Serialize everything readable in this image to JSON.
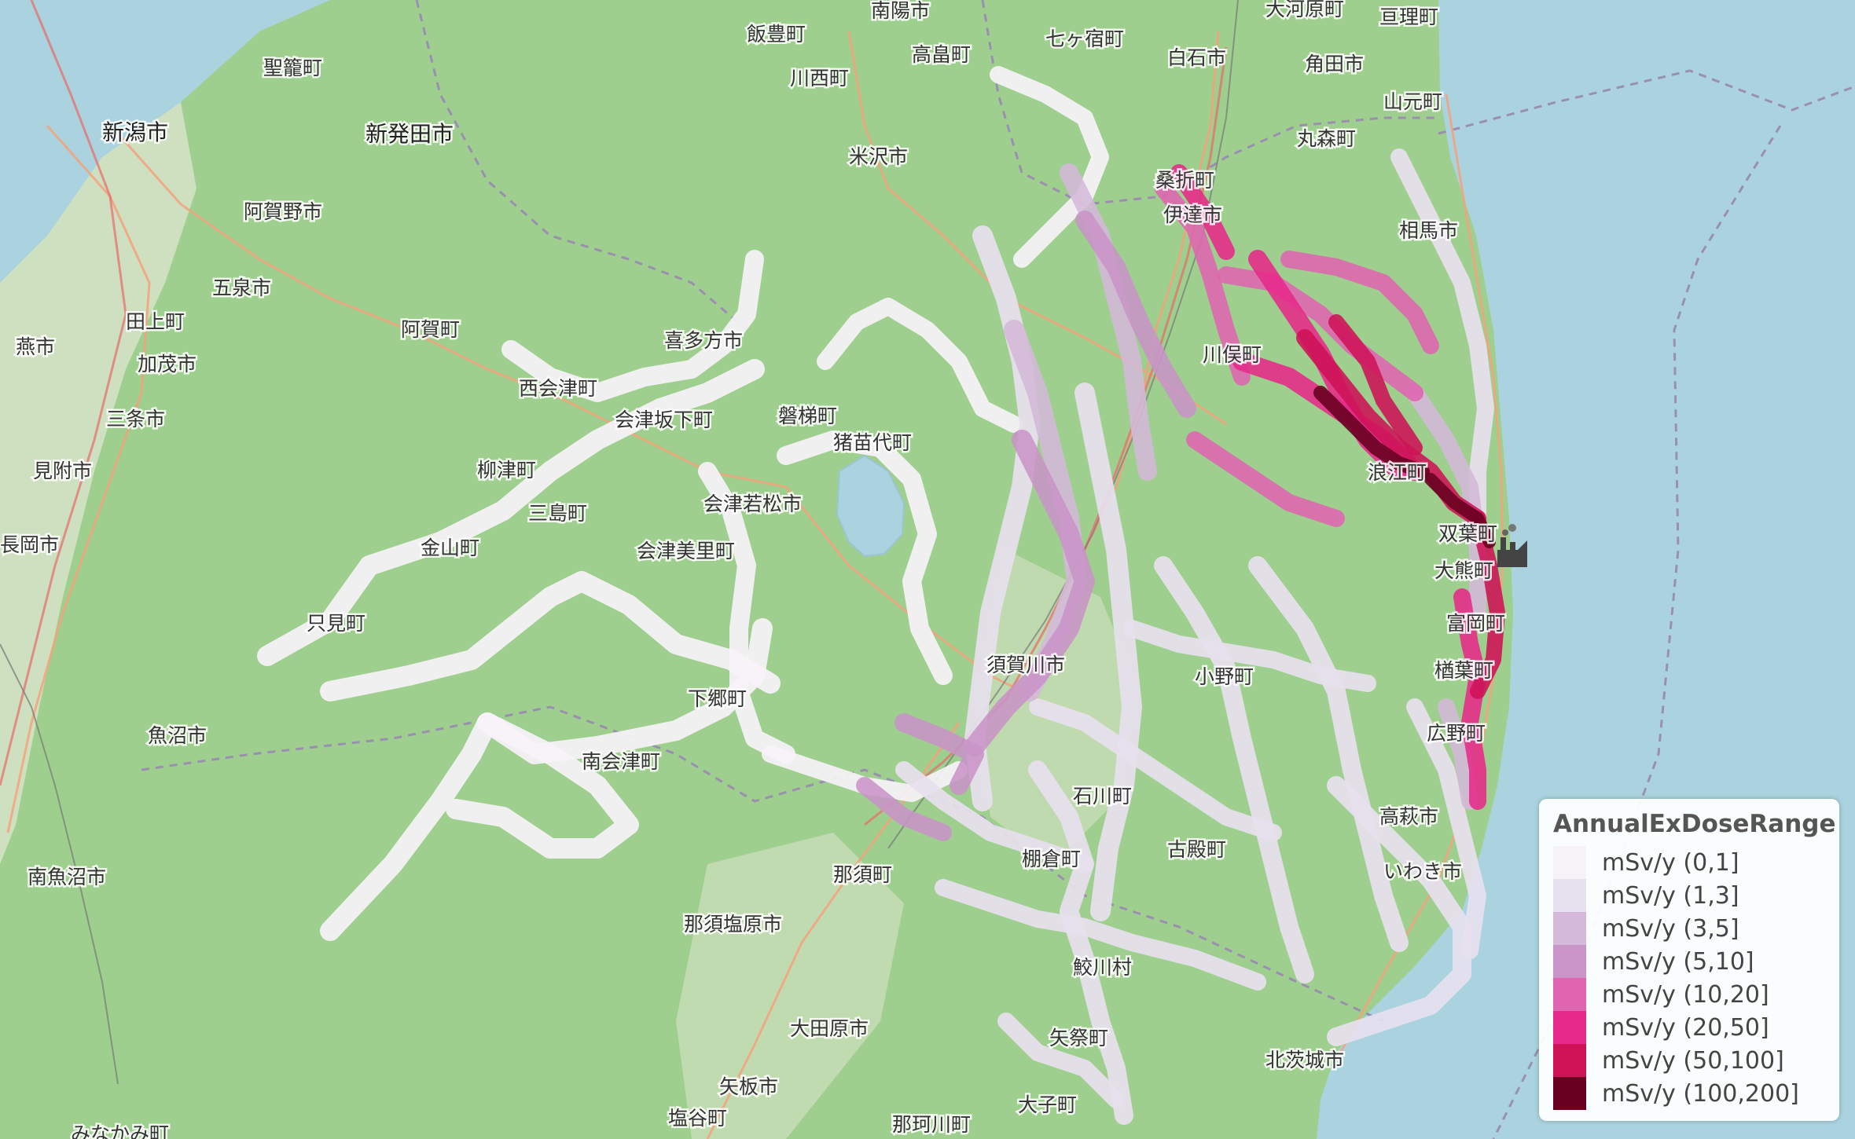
{
  "map": {
    "colors": {
      "sea": "#aad3df",
      "land": "#9fcf8e",
      "plain": "#e3e7d6",
      "lake": "#aad3df",
      "road_major": "#f3a27c",
      "road_trunk": "#e86a6a",
      "boundary": "#9b8fb0"
    },
    "places": [
      "新潟市",
      "新発田市",
      "阿賀野市",
      "五泉市",
      "田上町",
      "燕市",
      "加茂市",
      "三条市",
      "見附市",
      "長岡市",
      "魚沼市",
      "南魚沼市",
      "聖籠町",
      "阿賀町",
      "只見町",
      "金山町",
      "三島町",
      "柳津町",
      "西会津町",
      "会津坂下町",
      "喜多方市",
      "会津若松市",
      "会津美里町",
      "磐梯町",
      "猪苗代町",
      "下郷町",
      "南会津町",
      "飯豊町",
      "川西町",
      "米沢市",
      "南陽市",
      "高畠町",
      "七ヶ宿町",
      "白石市",
      "角田市",
      "大河原町",
      "亘理町",
      "山元町",
      "丸森町",
      "桑折町",
      "伊達市",
      "相馬市",
      "川俣町",
      "浪江町",
      "双葉町",
      "大熊町",
      "富岡町",
      "楢葉町",
      "広野町",
      "いわき市",
      "須賀川市",
      "小野町",
      "古殿町",
      "石川町",
      "棚倉町",
      "那須町",
      "那須塩原市",
      "大田原市",
      "矢板市",
      "塩谷町",
      "那珂川町",
      "大子町",
      "北茨城市",
      "高萩市",
      "矢祭町",
      "鮫川村",
      "みなかみ町"
    ]
  },
  "dose": {
    "colors": [
      "#f7f3f9",
      "#e7e1ef",
      "#d4b9da",
      "#c994c7",
      "#df65b0",
      "#e7298a",
      "#ce1256",
      "#67001f"
    ],
    "plant_icon": "nuclear-plant-icon"
  },
  "legend": {
    "title": "AnnualExDoseRange",
    "items": [
      {
        "label": "mSv/y (0,1]",
        "color": "#f7f3f9"
      },
      {
        "label": "mSv/y (1,3]",
        "color": "#e7e1ef"
      },
      {
        "label": "mSv/y (3,5]",
        "color": "#d4b9da"
      },
      {
        "label": "mSv/y (5,10]",
        "color": "#c994c7"
      },
      {
        "label": "mSv/y (10,20]",
        "color": "#df65b0"
      },
      {
        "label": "mSv/y (20,50]",
        "color": "#e7298a"
      },
      {
        "label": "mSv/y (50,100]",
        "color": "#ce1256"
      },
      {
        "label": "mSv/y (100,200]",
        "color": "#67001f"
      }
    ]
  }
}
